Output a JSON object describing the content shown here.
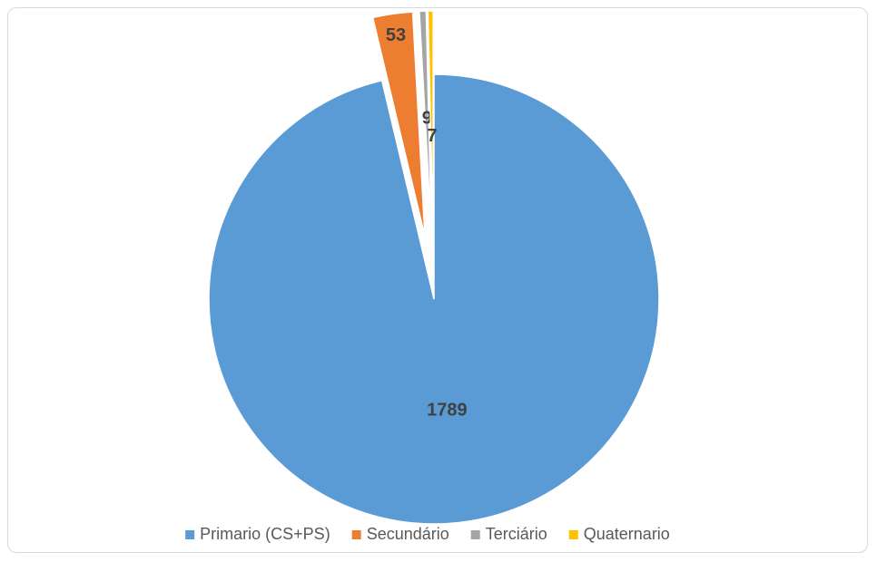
{
  "chart_data": {
    "type": "pie",
    "categories": [
      "Primario (CS+PS)",
      "Secundário",
      "Terciário",
      "Quaternario"
    ],
    "values": [
      1789,
      53,
      9,
      7
    ],
    "colors": [
      "#5b9bd5",
      "#ed7d31",
      "#a5a5a5",
      "#ffc000"
    ],
    "legend": "bottom"
  }
}
